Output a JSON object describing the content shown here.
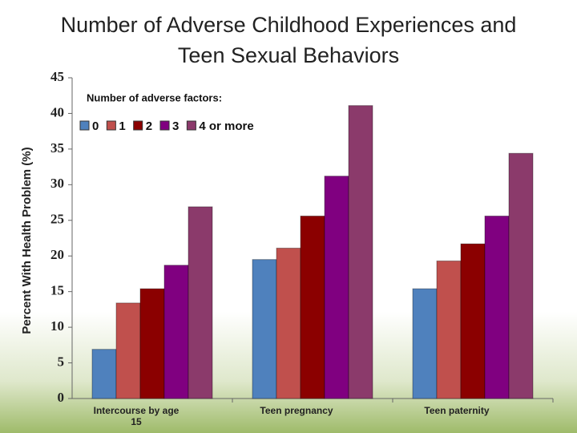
{
  "chart_data": {
    "type": "bar",
    "title": "Number of Adverse Childhood Experiences and Teen Sexual Behaviors",
    "y_label": "Percent With Health Problem (%)",
    "legend_title": "Number of adverse factors:",
    "categories": [
      "Intercourse by age 15",
      "Teen pregnancy",
      "Teen paternity"
    ],
    "series": [
      {
        "name": "0",
        "color": "#4f81bd",
        "values": [
          6.9,
          19.5,
          15.4
        ]
      },
      {
        "name": "1",
        "color": "#c0504d",
        "values": [
          13.4,
          21.1,
          19.3
        ]
      },
      {
        "name": "2",
        "color": "#8b0000",
        "values": [
          15.4,
          25.6,
          21.7
        ]
      },
      {
        "name": "3",
        "color": "#800080",
        "values": [
          18.7,
          31.2,
          25.6
        ]
      },
      {
        "name": "4 or more",
        "color": "#8b3a6b",
        "values": [
          26.9,
          41.1,
          34.4
        ]
      }
    ],
    "ylim": [
      0,
      45
    ],
    "yticks": [
      0,
      5,
      10,
      15,
      20,
      25,
      30,
      35,
      40,
      45
    ],
    "grid": false
  }
}
